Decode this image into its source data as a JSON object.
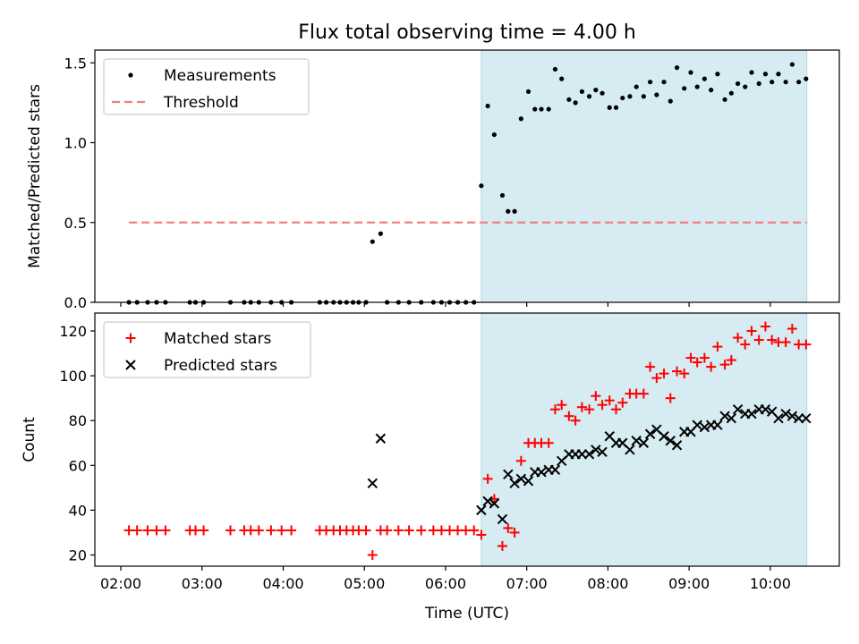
{
  "figure": {
    "title": "Flux total observing time = 4.00 h"
  },
  "chart_data": [
    {
      "type": "scatter",
      "panel": "top",
      "xlabel": "",
      "ylabel": "Matched/Predicted stars",
      "ylim": [
        0,
        1.58
      ],
      "yticks": [
        0.0,
        0.5,
        1.0,
        1.5
      ],
      "ytick_labels": [
        "0.0",
        "0.5",
        "1.0",
        "1.5"
      ],
      "threshold": 0.5,
      "threshold_x": [
        2.1,
        10.45
      ],
      "shaded_region": [
        6.44,
        10.45
      ],
      "legend": {
        "position": "upper left",
        "entries": [
          {
            "label": "Measurements",
            "marker": "dot",
            "color": "#000000"
          },
          {
            "label": "Threshold",
            "marker": "dashed-line",
            "color": "#f08080"
          }
        ]
      },
      "series": [
        {
          "name": "Measurements",
          "marker": "dot",
          "color": "#000000",
          "points": [
            [
              2.1,
              0
            ],
            [
              2.2,
              0
            ],
            [
              2.33,
              0
            ],
            [
              2.44,
              0
            ],
            [
              2.55,
              0
            ],
            [
              2.85,
              0
            ],
            [
              2.92,
              0
            ],
            [
              3.02,
              0
            ],
            [
              3.35,
              0
            ],
            [
              3.52,
              0
            ],
            [
              3.6,
              0
            ],
            [
              3.7,
              0
            ],
            [
              3.85,
              0
            ],
            [
              3.98,
              0
            ],
            [
              4.1,
              0
            ],
            [
              4.45,
              0
            ],
            [
              4.53,
              0
            ],
            [
              4.62,
              0
            ],
            [
              4.7,
              0
            ],
            [
              4.78,
              0
            ],
            [
              4.86,
              0
            ],
            [
              4.93,
              0
            ],
            [
              5.02,
              0
            ],
            [
              5.1,
              0.38
            ],
            [
              5.2,
              0.43
            ],
            [
              5.28,
              0
            ],
            [
              5.42,
              0
            ],
            [
              5.55,
              0
            ],
            [
              5.7,
              0
            ],
            [
              5.85,
              0
            ],
            [
              5.95,
              0
            ],
            [
              6.05,
              0
            ],
            [
              6.15,
              0
            ],
            [
              6.25,
              0
            ],
            [
              6.35,
              0
            ],
            [
              6.44,
              0.73
            ],
            [
              6.52,
              1.23
            ],
            [
              6.6,
              1.05
            ],
            [
              6.7,
              0.67
            ],
            [
              6.77,
              0.57
            ],
            [
              6.85,
              0.57
            ],
            [
              6.93,
              1.15
            ],
            [
              7.02,
              1.32
            ],
            [
              7.1,
              1.21
            ],
            [
              7.18,
              1.21
            ],
            [
              7.27,
              1.21
            ],
            [
              7.35,
              1.46
            ],
            [
              7.43,
              1.4
            ],
            [
              7.52,
              1.27
            ],
            [
              7.6,
              1.25
            ],
            [
              7.68,
              1.32
            ],
            [
              7.77,
              1.29
            ],
            [
              7.85,
              1.33
            ],
            [
              7.93,
              1.31
            ],
            [
              8.02,
              1.22
            ],
            [
              8.1,
              1.22
            ],
            [
              8.18,
              1.28
            ],
            [
              8.27,
              1.29
            ],
            [
              8.35,
              1.35
            ],
            [
              8.44,
              1.29
            ],
            [
              8.52,
              1.38
            ],
            [
              8.6,
              1.3
            ],
            [
              8.69,
              1.38
            ],
            [
              8.77,
              1.26
            ],
            [
              8.85,
              1.47
            ],
            [
              8.94,
              1.34
            ],
            [
              9.02,
              1.44
            ],
            [
              9.1,
              1.35
            ],
            [
              9.19,
              1.4
            ],
            [
              9.27,
              1.33
            ],
            [
              9.35,
              1.43
            ],
            [
              9.44,
              1.27
            ],
            [
              9.52,
              1.31
            ],
            [
              9.6,
              1.37
            ],
            [
              9.69,
              1.35
            ],
            [
              9.77,
              1.44
            ],
            [
              9.86,
              1.37
            ],
            [
              9.94,
              1.43
            ],
            [
              10.02,
              1.38
            ],
            [
              10.1,
              1.43
            ],
            [
              10.19,
              1.38
            ],
            [
              10.27,
              1.49
            ],
            [
              10.35,
              1.38
            ],
            [
              10.44,
              1.4
            ]
          ]
        }
      ]
    },
    {
      "type": "scatter",
      "panel": "bottom",
      "xlabel": "Time (UTC)",
      "ylabel": "Count",
      "xlim": [
        1.68,
        10.85
      ],
      "ylim": [
        15,
        128
      ],
      "xticks": [
        2,
        3,
        4,
        5,
        6,
        7,
        8,
        9,
        10
      ],
      "xtick_labels": [
        "02:00",
        "03:00",
        "04:00",
        "05:00",
        "06:00",
        "07:00",
        "08:00",
        "09:00",
        "10:00"
      ],
      "yticks": [
        20,
        40,
        60,
        80,
        100,
        120
      ],
      "ytick_labels": [
        "20",
        "40",
        "60",
        "80",
        "100",
        "120"
      ],
      "shaded_region": [
        6.44,
        10.45
      ],
      "legend": {
        "position": "upper left",
        "entries": [
          {
            "label": "Matched stars",
            "marker": "plus",
            "color": "#ff0000"
          },
          {
            "label": "Predicted stars",
            "marker": "x",
            "color": "#000000"
          }
        ]
      },
      "series": [
        {
          "name": "Matched stars",
          "marker": "plus",
          "color": "#ff0000",
          "points": [
            [
              2.1,
              31
            ],
            [
              2.2,
              31
            ],
            [
              2.33,
              31
            ],
            [
              2.44,
              31
            ],
            [
              2.55,
              31
            ],
            [
              2.85,
              31
            ],
            [
              2.92,
              31
            ],
            [
              3.02,
              31
            ],
            [
              3.35,
              31
            ],
            [
              3.52,
              31
            ],
            [
              3.6,
              31
            ],
            [
              3.7,
              31
            ],
            [
              3.85,
              31
            ],
            [
              3.98,
              31
            ],
            [
              4.1,
              31
            ],
            [
              4.45,
              31
            ],
            [
              4.53,
              31
            ],
            [
              4.62,
              31
            ],
            [
              4.7,
              31
            ],
            [
              4.78,
              31
            ],
            [
              4.86,
              31
            ],
            [
              4.93,
              31
            ],
            [
              5.02,
              31
            ],
            [
              5.1,
              20
            ],
            [
              5.2,
              31
            ],
            [
              5.28,
              31
            ],
            [
              5.42,
              31
            ],
            [
              5.55,
              31
            ],
            [
              5.7,
              31
            ],
            [
              5.85,
              31
            ],
            [
              5.95,
              31
            ],
            [
              6.05,
              31
            ],
            [
              6.15,
              31
            ],
            [
              6.25,
              31
            ],
            [
              6.35,
              31
            ],
            [
              6.44,
              29
            ],
            [
              6.52,
              54
            ],
            [
              6.6,
              45
            ],
            [
              6.7,
              24
            ],
            [
              6.77,
              32
            ],
            [
              6.85,
              30
            ],
            [
              6.93,
              62
            ],
            [
              7.02,
              70
            ],
            [
              7.1,
              70
            ],
            [
              7.18,
              70
            ],
            [
              7.27,
              70
            ],
            [
              7.35,
              85
            ],
            [
              7.43,
              87
            ],
            [
              7.52,
              82
            ],
            [
              7.6,
              80
            ],
            [
              7.68,
              86
            ],
            [
              7.77,
              85
            ],
            [
              7.85,
              91
            ],
            [
              7.93,
              87
            ],
            [
              8.02,
              89
            ],
            [
              8.1,
              85
            ],
            [
              8.18,
              88
            ],
            [
              8.27,
              92
            ],
            [
              8.35,
              92
            ],
            [
              8.44,
              92
            ],
            [
              8.52,
              104
            ],
            [
              8.6,
              99
            ],
            [
              8.69,
              101
            ],
            [
              8.77,
              90
            ],
            [
              8.85,
              102
            ],
            [
              8.94,
              101
            ],
            [
              9.02,
              108
            ],
            [
              9.1,
              106
            ],
            [
              9.19,
              108
            ],
            [
              9.27,
              104
            ],
            [
              9.35,
              113
            ],
            [
              9.44,
              105
            ],
            [
              9.52,
              107
            ],
            [
              9.6,
              117
            ],
            [
              9.69,
              114
            ],
            [
              9.77,
              120
            ],
            [
              9.86,
              116
            ],
            [
              9.94,
              122
            ],
            [
              10.02,
              116
            ],
            [
              10.1,
              115
            ],
            [
              10.19,
              115
            ],
            [
              10.27,
              121
            ],
            [
              10.35,
              114
            ],
            [
              10.44,
              114
            ]
          ]
        },
        {
          "name": "Predicted stars",
          "marker": "x",
          "color": "#000000",
          "points": [
            [
              5.1,
              52
            ],
            [
              5.2,
              72
            ],
            [
              6.44,
              40
            ],
            [
              6.52,
              44
            ],
            [
              6.6,
              43
            ],
            [
              6.7,
              36
            ],
            [
              6.77,
              56
            ],
            [
              6.85,
              52
            ],
            [
              6.93,
              54
            ],
            [
              7.02,
              53
            ],
            [
              7.1,
              57
            ],
            [
              7.18,
              57
            ],
            [
              7.27,
              58
            ],
            [
              7.35,
              58
            ],
            [
              7.43,
              62
            ],
            [
              7.52,
              65
            ],
            [
              7.6,
              65
            ],
            [
              7.68,
              65
            ],
            [
              7.77,
              65
            ],
            [
              7.85,
              67
            ],
            [
              7.93,
              66
            ],
            [
              8.02,
              73
            ],
            [
              8.1,
              70
            ],
            [
              8.18,
              70
            ],
            [
              8.27,
              67
            ],
            [
              8.35,
              71
            ],
            [
              8.44,
              70
            ],
            [
              8.52,
              74
            ],
            [
              8.6,
              76
            ],
            [
              8.69,
              73
            ],
            [
              8.77,
              71
            ],
            [
              8.85,
              69
            ],
            [
              8.94,
              75
            ],
            [
              9.02,
              75
            ],
            [
              9.1,
              78
            ],
            [
              9.19,
              77
            ],
            [
              9.27,
              78
            ],
            [
              9.35,
              78
            ],
            [
              9.44,
              82
            ],
            [
              9.52,
              81
            ],
            [
              9.6,
              85
            ],
            [
              9.69,
              83
            ],
            [
              9.77,
              83
            ],
            [
              9.86,
              85
            ],
            [
              9.94,
              85
            ],
            [
              10.02,
              84
            ],
            [
              10.1,
              81
            ],
            [
              10.19,
              83
            ],
            [
              10.27,
              82
            ],
            [
              10.35,
              81
            ],
            [
              10.44,
              81
            ]
          ]
        }
      ]
    }
  ]
}
